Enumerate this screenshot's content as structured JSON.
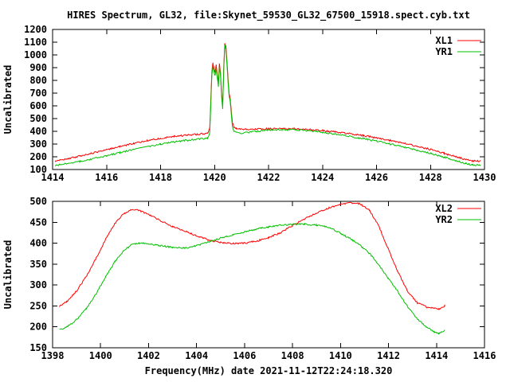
{
  "title": "HIRES Spectrum, GL32, file:Skynet_59530_GL32_67500_15918.spect.cyb.txt",
  "colors": {
    "xl_red": "#ff0000",
    "yr_green": "#00c000",
    "axis": "#000000",
    "background": "#ffffff"
  },
  "chart_data": [
    {
      "type": "line",
      "ylabel": "Uncalibrated",
      "xlabel": "",
      "xlim": [
        1414,
        1430
      ],
      "ylim": [
        100,
        1200
      ],
      "xticks": [
        1414,
        1416,
        1418,
        1420,
        1422,
        1424,
        1426,
        1428,
        1430
      ],
      "yticks": [
        100,
        200,
        300,
        400,
        500,
        600,
        700,
        800,
        900,
        1000,
        1100,
        1200
      ],
      "grid": false,
      "legend_position": "top-right-inside",
      "series": [
        {
          "name": "XL1",
          "color": "#ff0000",
          "x": [
            1414.1,
            1414.5,
            1415,
            1415.5,
            1416,
            1416.5,
            1417,
            1417.5,
            1418,
            1418.5,
            1419,
            1419.3,
            1419.6,
            1419.75,
            1419.82,
            1419.86,
            1419.9,
            1419.94,
            1419.98,
            1420.02,
            1420.06,
            1420.1,
            1420.14,
            1420.18,
            1420.22,
            1420.26,
            1420.3,
            1420.34,
            1420.38,
            1420.42,
            1420.46,
            1420.5,
            1420.54,
            1420.58,
            1420.62,
            1420.66,
            1420.72,
            1420.8,
            1421,
            1421.5,
            1422,
            1422.5,
            1423,
            1423.5,
            1424,
            1424.5,
            1425,
            1425.5,
            1426,
            1426.5,
            1427,
            1427.5,
            1428,
            1428.5,
            1429,
            1429.3,
            1429.55,
            1429.75,
            1429.85
          ],
          "y": [
            165,
            182,
            205,
            230,
            255,
            280,
            305,
            327,
            345,
            360,
            371,
            376,
            380,
            384,
            420,
            640,
            870,
            935,
            895,
            860,
            920,
            850,
            780,
            930,
            860,
            700,
            598,
            905,
            1095,
            1060,
            950,
            810,
            700,
            655,
            560,
            470,
            432,
            424,
            416,
            417,
            420,
            421,
            420,
            414,
            405,
            394,
            381,
            366,
            349,
            329,
            307,
            283,
            257,
            227,
            196,
            179,
            168,
            166,
            170
          ]
        },
        {
          "name": "YR1",
          "color": "#00c000",
          "x": [
            1414.1,
            1414.5,
            1415,
            1415.5,
            1416,
            1416.5,
            1417,
            1417.5,
            1418,
            1418.5,
            1419,
            1419.3,
            1419.6,
            1419.75,
            1419.82,
            1419.86,
            1419.9,
            1419.94,
            1419.98,
            1420.02,
            1420.06,
            1420.1,
            1420.14,
            1420.18,
            1420.22,
            1420.26,
            1420.3,
            1420.34,
            1420.38,
            1420.42,
            1420.46,
            1420.5,
            1420.54,
            1420.58,
            1420.62,
            1420.66,
            1420.72,
            1420.8,
            1421,
            1421.5,
            1422,
            1422.5,
            1423,
            1423.5,
            1424,
            1424.5,
            1425,
            1425.5,
            1426,
            1426.5,
            1427,
            1427.5,
            1428,
            1428.5,
            1429,
            1429.3,
            1429.55,
            1429.75,
            1429.85
          ],
          "y": [
            131,
            145,
            163,
            185,
            208,
            233,
            258,
            280,
            300,
            317,
            330,
            337,
            343,
            348,
            390,
            600,
            845,
            910,
            868,
            835,
            898,
            822,
            755,
            905,
            838,
            672,
            575,
            880,
            1075,
            1040,
            928,
            785,
            675,
            630,
            530,
            435,
            398,
            390,
            386,
            399,
            409,
            413,
            412,
            404,
            391,
            377,
            360,
            343,
            323,
            301,
            277,
            252,
            226,
            197,
            166,
            148,
            136,
            133,
            137
          ]
        }
      ]
    },
    {
      "type": "line",
      "ylabel": "Uncalibrated",
      "xlabel": "Frequency(MHz) date 2021-11-12T22:24:18.320",
      "xlim": [
        1398,
        1416
      ],
      "ylim": [
        150,
        500
      ],
      "xticks": [
        1398,
        1400,
        1402,
        1404,
        1406,
        1408,
        1410,
        1412,
        1414,
        1416
      ],
      "yticks": [
        150,
        200,
        250,
        300,
        350,
        400,
        450,
        500
      ],
      "grid": false,
      "legend_position": "top-right-inside",
      "series": [
        {
          "name": "XL2",
          "color": "#ff0000",
          "x": [
            1398.3,
            1398.6,
            1399,
            1399.4,
            1399.8,
            1400.2,
            1400.6,
            1401,
            1401.3,
            1401.6,
            1402,
            1402.5,
            1403,
            1403.5,
            1404,
            1404.6,
            1405,
            1405.5,
            1406,
            1406.5,
            1407,
            1407.5,
            1408,
            1408.5,
            1409,
            1409.5,
            1410,
            1410.4,
            1410.8,
            1411.2,
            1411.6,
            1412,
            1412.4,
            1412.8,
            1413.2,
            1413.6,
            1413.9,
            1414.1,
            1414.35
          ],
          "y": [
            250,
            261,
            286,
            320,
            362,
            408,
            448,
            472,
            480,
            478,
            469,
            454,
            440,
            429,
            418,
            406,
            402,
            399,
            400,
            405,
            413,
            425,
            442,
            458,
            472,
            484,
            493,
            497,
            494,
            480,
            440,
            385,
            330,
            285,
            258,
            247,
            244,
            243,
            250
          ]
        },
        {
          "name": "YR2",
          "color": "#00c000",
          "x": [
            1398.3,
            1398.6,
            1399,
            1399.4,
            1399.8,
            1400.2,
            1400.6,
            1401,
            1401.3,
            1401.6,
            1402,
            1402.5,
            1403,
            1403.5,
            1404,
            1404.6,
            1405,
            1405.5,
            1406,
            1406.5,
            1407,
            1407.5,
            1408,
            1408.5,
            1409,
            1409.5,
            1410,
            1410.4,
            1410.8,
            1411.2,
            1411.6,
            1412,
            1412.4,
            1412.8,
            1413.2,
            1413.6,
            1413.9,
            1414.1,
            1414.35
          ],
          "y": [
            193,
            200,
            217,
            243,
            278,
            318,
            356,
            384,
            396,
            400,
            399,
            394,
            390,
            388,
            394,
            405,
            412,
            420,
            427,
            434,
            439,
            443,
            445,
            445,
            443,
            438,
            424,
            411,
            396,
            376,
            348,
            315,
            283,
            248,
            219,
            199,
            188,
            184,
            192
          ]
        }
      ]
    }
  ]
}
